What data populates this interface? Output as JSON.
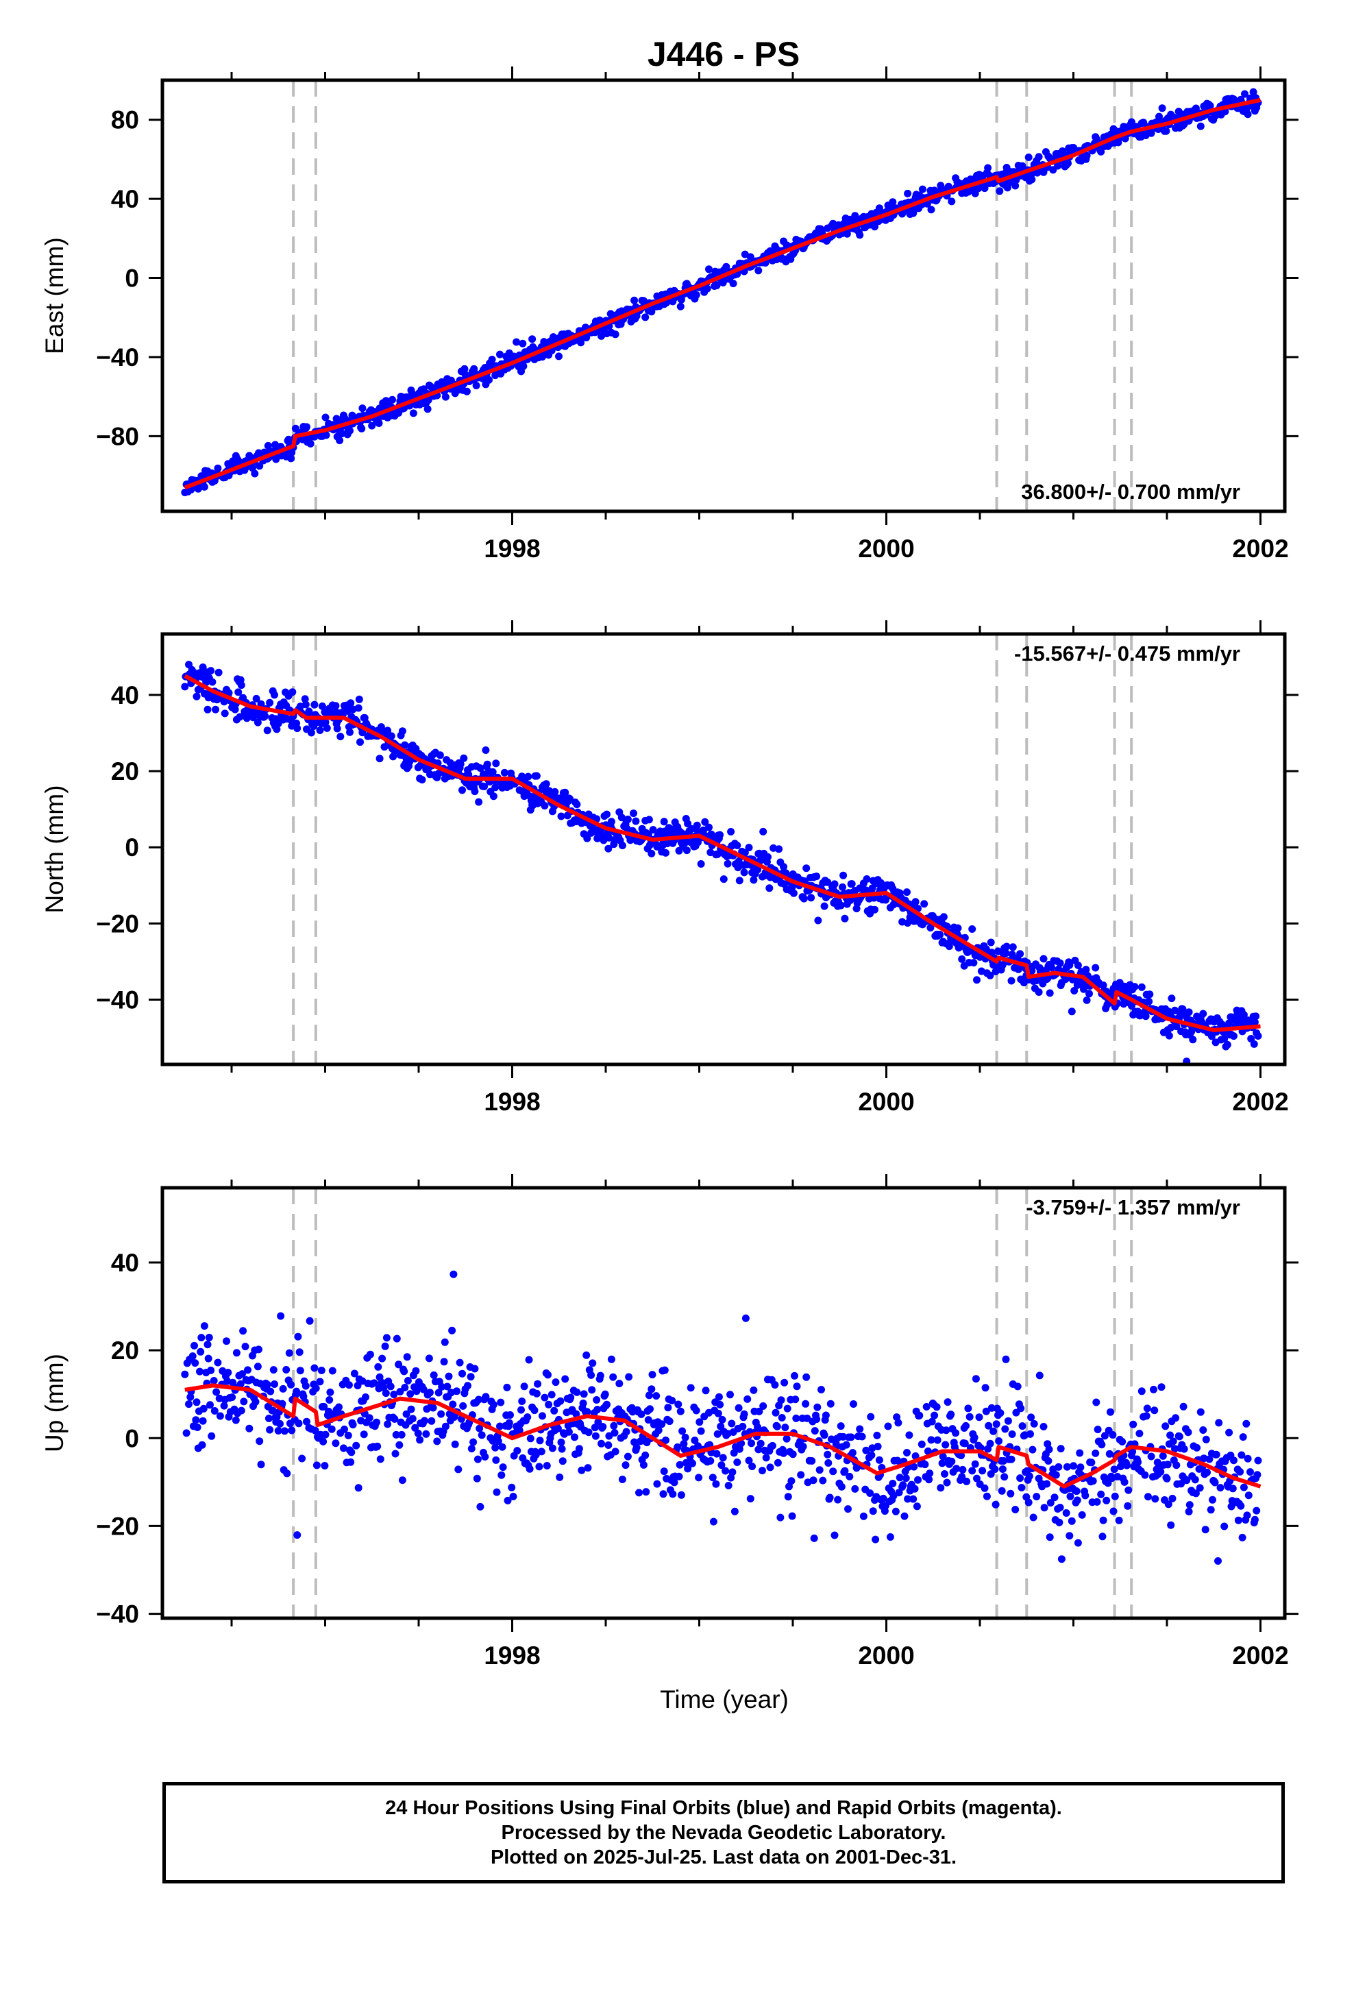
{
  "title": "J446 - PS",
  "caption": {
    "line1": "24 Hour Positions Using Final Orbits (blue) and Rapid Orbits (magenta).",
    "line2": "Processed by the Nevada Geodetic Laboratory.",
    "line3": "Plotted on 2025-Jul-25. Last data on 2001-Dec-31."
  },
  "colors": {
    "points": "#0000ff",
    "model": "#ff0000",
    "breaks": "#bdbdbd"
  },
  "chart_data": [
    {
      "type": "scatter",
      "ylabel": "East (mm)",
      "xlabel": "",
      "rate_label": "36.800+/- 0.700 mm/yr",
      "xlim": [
        1996.13,
        2002.13
      ],
      "ylim": [
        -118,
        100
      ],
      "xticks": [
        1998,
        2000,
        2002
      ],
      "xtick_labels": [
        "1998",
        "2000",
        "2002"
      ],
      "yticks": [
        80,
        40,
        0,
        -40,
        -80
      ],
      "ytick_labels": [
        "80",
        "40",
        "0",
        "−40",
        "−80"
      ],
      "break_epochs": [
        1996.83,
        1996.95,
        2000.59,
        2000.75,
        2001.22,
        2001.31
      ],
      "model_line": [
        [
          1996.25,
          -106
        ],
        [
          1996.5,
          -97
        ],
        [
          1996.83,
          -85
        ],
        [
          1996.84,
          -80
        ],
        [
          1997,
          -77
        ],
        [
          1997.25,
          -70
        ],
        [
          1997.5,
          -61
        ],
        [
          1997.75,
          -52
        ],
        [
          1998,
          -43
        ],
        [
          1998.25,
          -33
        ],
        [
          1998.5,
          -23
        ],
        [
          1998.75,
          -13
        ],
        [
          1999,
          -4
        ],
        [
          1999.25,
          6
        ],
        [
          1999.5,
          15
        ],
        [
          1999.75,
          24
        ],
        [
          2000,
          32
        ],
        [
          2000.25,
          41
        ],
        [
          2000.59,
          51
        ],
        [
          2000.6,
          49
        ],
        [
          2000.75,
          54
        ],
        [
          2001,
          62
        ],
        [
          2001.22,
          71
        ],
        [
          2001.31,
          74
        ],
        [
          2001.5,
          78
        ],
        [
          2001.75,
          85
        ],
        [
          2002,
          90
        ]
      ],
      "series": [
        {
          "name": "Final Orbits",
          "generator": {
            "start": 1996.25,
            "end": 2001.99,
            "step": 0.0042,
            "scatter_mm": 2.6,
            "outlier_prob": 0,
            "outlier_mm": 0,
            "seed": 11
          }
        }
      ]
    },
    {
      "type": "scatter",
      "ylabel": "North (mm)",
      "xlabel": "",
      "rate_label": "-15.567+/- 0.475 mm/yr",
      "xlim": [
        1996.13,
        2002.13
      ],
      "ylim": [
        -57,
        56
      ],
      "xticks": [
        1998,
        2000,
        2002
      ],
      "xtick_labels": [
        "1998",
        "2000",
        "2002"
      ],
      "yticks": [
        40,
        20,
        0,
        -20,
        -40
      ],
      "ytick_labels": [
        "40",
        "20",
        "0",
        "−20",
        "−40"
      ],
      "break_epochs": [
        1996.83,
        1996.95,
        2000.59,
        2000.75,
        2001.22,
        2001.31
      ],
      "model_line": [
        [
          1996.25,
          45
        ],
        [
          1996.4,
          41
        ],
        [
          1996.6,
          37
        ],
        [
          1996.83,
          35
        ],
        [
          1996.84,
          36
        ],
        [
          1996.9,
          34
        ],
        [
          1997.1,
          34
        ],
        [
          1997.3,
          29
        ],
        [
          1997.5,
          23
        ],
        [
          1997.75,
          18
        ],
        [
          1998,
          18
        ],
        [
          1998.25,
          11
        ],
        [
          1998.5,
          5
        ],
        [
          1998.75,
          2
        ],
        [
          1999,
          3
        ],
        [
          1999.25,
          -3
        ],
        [
          1999.5,
          -9
        ],
        [
          1999.75,
          -13
        ],
        [
          2000,
          -12
        ],
        [
          2000.25,
          -20
        ],
        [
          2000.59,
          -30
        ],
        [
          2000.6,
          -29
        ],
        [
          2000.75,
          -31
        ],
        [
          2000.76,
          -34
        ],
        [
          2000.9,
          -33
        ],
        [
          2001.05,
          -34
        ],
        [
          2001.22,
          -41
        ],
        [
          2001.23,
          -38
        ],
        [
          2001.31,
          -40
        ],
        [
          2001.5,
          -45
        ],
        [
          2001.75,
          -48
        ],
        [
          2002,
          -47
        ]
      ],
      "series": [
        {
          "name": "Final Orbits",
          "generator": {
            "start": 1996.25,
            "end": 2001.99,
            "step": 0.0042,
            "scatter_mm": 2.2,
            "outlier_prob": 0.01,
            "outlier_mm": 6,
            "seed": 23
          }
        }
      ]
    },
    {
      "type": "scatter",
      "ylabel": "Up (mm)",
      "xlabel": "Time (year)",
      "rate_label": "-3.759+/- 1.357 mm/yr",
      "xlim": [
        1996.13,
        2002.13
      ],
      "ylim": [
        -41,
        57
      ],
      "xticks": [
        1998,
        2000,
        2002
      ],
      "xtick_labels": [
        "1998",
        "2000",
        "2002"
      ],
      "yticks": [
        40,
        20,
        0,
        -20,
        -40
      ],
      "ytick_labels": [
        "40",
        "20",
        "0",
        "−20",
        "−40"
      ],
      "break_epochs": [
        1996.83,
        1996.95,
        2000.59,
        2000.75,
        2001.22,
        2001.31
      ],
      "model_line": [
        [
          1996.25,
          11
        ],
        [
          1996.4,
          12
        ],
        [
          1996.6,
          11
        ],
        [
          1996.83,
          5
        ],
        [
          1996.84,
          9
        ],
        [
          1996.95,
          6
        ],
        [
          1996.96,
          3
        ],
        [
          1997.1,
          5
        ],
        [
          1997.4,
          9
        ],
        [
          1997.6,
          8
        ],
        [
          1997.8,
          4
        ],
        [
          1998,
          0
        ],
        [
          1998.2,
          3
        ],
        [
          1998.4,
          5
        ],
        [
          1998.6,
          4
        ],
        [
          1998.9,
          -4
        ],
        [
          1999.1,
          -2
        ],
        [
          1999.3,
          1
        ],
        [
          1999.5,
          1
        ],
        [
          1999.7,
          -2
        ],
        [
          1999.95,
          -8
        ],
        [
          2000.1,
          -6
        ],
        [
          2000.3,
          -3
        ],
        [
          2000.5,
          -3
        ],
        [
          2000.59,
          -5
        ],
        [
          2000.6,
          -2
        ],
        [
          2000.75,
          -4
        ],
        [
          2000.76,
          -6
        ],
        [
          2000.95,
          -11
        ],
        [
          2001.1,
          -8
        ],
        [
          2001.22,
          -5
        ],
        [
          2001.23,
          -4
        ],
        [
          2001.31,
          -2
        ],
        [
          2001.5,
          -3
        ],
        [
          2001.7,
          -6
        ],
        [
          2001.85,
          -9
        ],
        [
          2002,
          -11
        ]
      ],
      "series": [
        {
          "name": "Final Orbits",
          "generator": {
            "start": 1996.25,
            "end": 2001.99,
            "step": 0.0042,
            "scatter_mm": 6.5,
            "outlier_prob": 0.015,
            "outlier_mm": 22,
            "seed": 37
          }
        }
      ]
    }
  ]
}
